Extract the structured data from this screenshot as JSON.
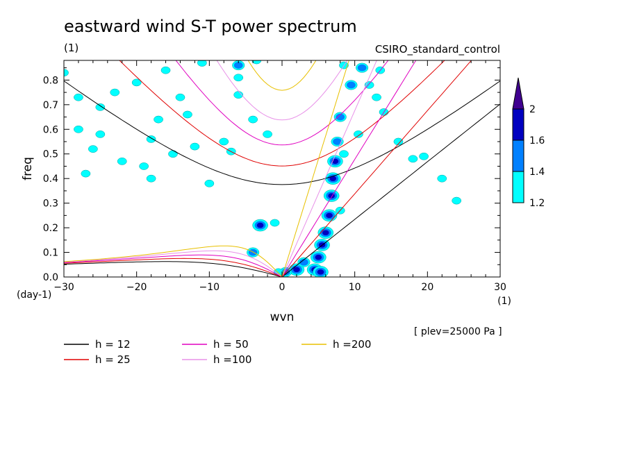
{
  "chart_data": {
    "type": "contour",
    "title": "eastward wind S-T power spectrum",
    "units_label": "(1)",
    "dataset": "CSIRO_standard_control",
    "xlabel": "wvn",
    "ylabel": "freq",
    "x_units": "(1)",
    "y_units": "(day-1)",
    "level_note": "[ plev=25000 Pa ]",
    "xlim": [
      -30,
      30
    ],
    "ylim": [
      0,
      0.88
    ],
    "x_ticks": [
      -30,
      -20,
      -10,
      0,
      10,
      20,
      30
    ],
    "x_tick_labels": [
      "−30",
      "−20",
      "−10",
      "0",
      "10",
      "20",
      "30"
    ],
    "y_ticks": [
      0.0,
      0.1,
      0.2,
      0.3,
      0.4,
      0.5,
      0.6,
      0.7,
      0.8
    ],
    "y_tick_labels": [
      "0.0",
      "0.1",
      "0.2",
      "0.3",
      "0.4",
      "0.5",
      "0.6",
      "0.7",
      "0.8"
    ],
    "colorbar": {
      "levels": [
        1.2,
        1.4,
        1.6,
        2
      ],
      "labels": [
        "1.2",
        "1.4",
        "1.6",
        "2"
      ],
      "colors": [
        "#00ffff",
        "#0080ff",
        "#0000c0",
        "#400090"
      ]
    },
    "curves": [
      {
        "name": "h = 12",
        "h": 12,
        "color": "#000000"
      },
      {
        "name": "h = 25",
        "h": 25,
        "color": "#e00000"
      },
      {
        "name": "h = 50",
        "h": 50,
        "color": "#e000c0"
      },
      {
        "name": "h =100",
        "h": 100,
        "color": "#e890e8"
      },
      {
        "name": "h =200",
        "h": 200,
        "color": "#e8c000"
      }
    ],
    "blobs": [
      {
        "x": 4.5,
        "y": 0.03,
        "level": 3
      },
      {
        "x": 5.0,
        "y": 0.08,
        "level": 3
      },
      {
        "x": 5.5,
        "y": 0.13,
        "level": 3
      },
      {
        "x": 6.0,
        "y": 0.18,
        "level": 3
      },
      {
        "x": 6.5,
        "y": 0.25,
        "level": 3
      },
      {
        "x": 6.8,
        "y": 0.33,
        "level": 3
      },
      {
        "x": 7.0,
        "y": 0.4,
        "level": 3
      },
      {
        "x": 7.3,
        "y": 0.47,
        "level": 3
      },
      {
        "x": 7.6,
        "y": 0.55,
        "level": 2
      },
      {
        "x": 8.0,
        "y": 0.65,
        "level": 2
      },
      {
        "x": 9.5,
        "y": 0.78,
        "level": 2
      },
      {
        "x": 11.0,
        "y": 0.85,
        "level": 2
      },
      {
        "x": 2.0,
        "y": 0.03,
        "level": 3
      },
      {
        "x": 3.0,
        "y": 0.06,
        "level": 2
      },
      {
        "x": 0.5,
        "y": 0.02,
        "level": 2
      },
      {
        "x": -0.5,
        "y": 0.02,
        "level": 1
      },
      {
        "x": 5.3,
        "y": 0.02,
        "level": 3
      },
      {
        "x": -3.0,
        "y": 0.21,
        "level": 3
      },
      {
        "x": -1.0,
        "y": 0.22,
        "level": 1
      },
      {
        "x": -4.0,
        "y": 0.1,
        "level": 2
      },
      {
        "x": -6.0,
        "y": 0.86,
        "level": 2
      },
      {
        "x": -3.5,
        "y": 0.88,
        "level": 1
      },
      {
        "x": -6.0,
        "y": 0.81,
        "level": 1
      },
      {
        "x": -10.0,
        "y": 0.38,
        "level": 1
      },
      {
        "x": -18.0,
        "y": 0.4,
        "level": 1
      },
      {
        "x": -22.0,
        "y": 0.47,
        "level": 1
      },
      {
        "x": -26.0,
        "y": 0.52,
        "level": 1
      },
      {
        "x": -25.0,
        "y": 0.58,
        "level": 1
      },
      {
        "x": -18.0,
        "y": 0.56,
        "level": 1
      },
      {
        "x": -15.0,
        "y": 0.5,
        "level": 1
      },
      {
        "x": -12.0,
        "y": 0.53,
        "level": 1
      },
      {
        "x": -8.0,
        "y": 0.55,
        "level": 1
      },
      {
        "x": -20.0,
        "y": 0.79,
        "level": 1
      },
      {
        "x": -23.0,
        "y": 0.75,
        "level": 1
      },
      {
        "x": -28.0,
        "y": 0.73,
        "level": 1
      },
      {
        "x": -14.0,
        "y": 0.73,
        "level": 1
      },
      {
        "x": -25.0,
        "y": 0.69,
        "level": 1
      },
      {
        "x": -17.0,
        "y": 0.64,
        "level": 1
      },
      {
        "x": -13.0,
        "y": 0.66,
        "level": 1
      },
      {
        "x": -30.0,
        "y": 0.83,
        "level": 1
      },
      {
        "x": -28.0,
        "y": 0.6,
        "level": 1
      },
      {
        "x": -19.0,
        "y": 0.45,
        "level": 1
      },
      {
        "x": -27.0,
        "y": 0.42,
        "level": 1
      },
      {
        "x": -16.0,
        "y": 0.84,
        "level": 1
      },
      {
        "x": -11.0,
        "y": 0.87,
        "level": 1
      },
      {
        "x": -6.0,
        "y": 0.74,
        "level": 1
      },
      {
        "x": -4.0,
        "y": 0.64,
        "level": 1
      },
      {
        "x": 12.0,
        "y": 0.78,
        "level": 1
      },
      {
        "x": 13.0,
        "y": 0.73,
        "level": 1
      },
      {
        "x": 14.0,
        "y": 0.67,
        "level": 1
      },
      {
        "x": 10.5,
        "y": 0.58,
        "level": 1
      },
      {
        "x": 16.0,
        "y": 0.55,
        "level": 1
      },
      {
        "x": 18.0,
        "y": 0.48,
        "level": 1
      },
      {
        "x": 22.0,
        "y": 0.4,
        "level": 1
      },
      {
        "x": 24.0,
        "y": 0.31,
        "level": 1
      },
      {
        "x": 8.5,
        "y": 0.5,
        "level": 1
      },
      {
        "x": 8.0,
        "y": 0.27,
        "level": 1
      },
      {
        "x": 13.5,
        "y": 0.84,
        "level": 1
      },
      {
        "x": 19.5,
        "y": 0.49,
        "level": 1
      },
      {
        "x": -7.0,
        "y": 0.51,
        "level": 1
      },
      {
        "x": -2.0,
        "y": 0.58,
        "level": 1
      },
      {
        "x": 8.5,
        "y": 0.86,
        "level": 1
      }
    ]
  },
  "legend": {
    "items": [
      "h = 12",
      "h = 25",
      "h = 50",
      "h =100",
      "h =200"
    ]
  }
}
